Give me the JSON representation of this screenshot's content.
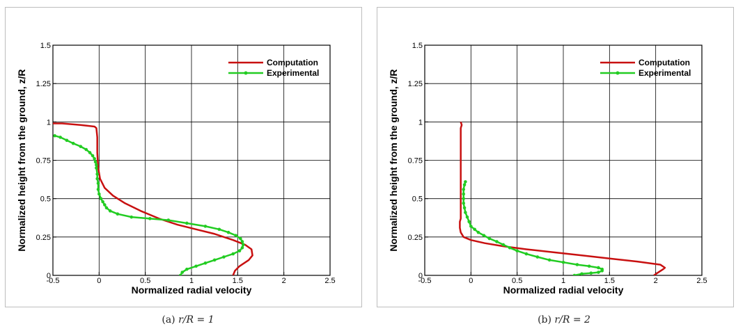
{
  "chart_data": [
    {
      "type": "line",
      "xlabel": "Normalized radial velocity",
      "ylabel": "Normalized height from the ground, z/R",
      "xlim": [
        -0.5,
        2.5
      ],
      "ylim": [
        0,
        1.5
      ],
      "x_ticks": [
        "-0.5",
        "0",
        "0.5",
        "1",
        "1.5",
        "2",
        "2.5"
      ],
      "y_ticks": [
        "0",
        "0.25",
        "0.5",
        "0.75",
        "1",
        "1.25",
        "1.5"
      ],
      "grid": true,
      "legend_position": "top-right",
      "caption": {
        "label": "(a)",
        "math": "r/R = 1"
      },
      "series": [
        {
          "name": "Computation",
          "color": "#c81010",
          "marker": "none",
          "points": [
            [
              1.45,
              0.0
            ],
            [
              1.47,
              0.03
            ],
            [
              1.52,
              0.06
            ],
            [
              1.62,
              0.1
            ],
            [
              1.66,
              0.13
            ],
            [
              1.65,
              0.17
            ],
            [
              1.58,
              0.2
            ],
            [
              1.45,
              0.23
            ],
            [
              1.25,
              0.27
            ],
            [
              1.05,
              0.3
            ],
            [
              0.85,
              0.33
            ],
            [
              0.65,
              0.37
            ],
            [
              0.45,
              0.42
            ],
            [
              0.28,
              0.47
            ],
            [
              0.15,
              0.52
            ],
            [
              0.06,
              0.57
            ],
            [
              0.01,
              0.63
            ],
            [
              -0.01,
              0.7
            ],
            [
              -0.02,
              0.8
            ],
            [
              -0.02,
              0.9
            ],
            [
              -0.03,
              0.96
            ],
            [
              -0.05,
              0.97
            ],
            [
              -0.2,
              0.98
            ],
            [
              -0.4,
              0.99
            ],
            [
              -0.5,
              0.99
            ]
          ]
        },
        {
          "name": "Experimental",
          "color": "#22cc22",
          "marker": "circle",
          "points": [
            [
              0.88,
              0.0
            ],
            [
              0.9,
              0.02
            ],
            [
              0.95,
              0.04
            ],
            [
              1.05,
              0.06
            ],
            [
              1.15,
              0.08
            ],
            [
              1.25,
              0.1
            ],
            [
              1.35,
              0.12
            ],
            [
              1.45,
              0.14
            ],
            [
              1.52,
              0.16
            ],
            [
              1.55,
              0.18
            ],
            [
              1.56,
              0.2
            ],
            [
              1.55,
              0.22
            ],
            [
              1.53,
              0.24
            ],
            [
              1.48,
              0.26
            ],
            [
              1.4,
              0.28
            ],
            [
              1.3,
              0.3
            ],
            [
              1.15,
              0.32
            ],
            [
              0.95,
              0.34
            ],
            [
              0.75,
              0.36
            ],
            [
              0.55,
              0.37
            ],
            [
              0.35,
              0.38
            ],
            [
              0.2,
              0.4
            ],
            [
              0.12,
              0.42
            ],
            [
              0.08,
              0.44
            ],
            [
              0.06,
              0.46
            ],
            [
              0.04,
              0.48
            ],
            [
              0.02,
              0.5
            ],
            [
              0.0,
              0.53
            ],
            [
              -0.01,
              0.56
            ],
            [
              -0.01,
              0.6
            ],
            [
              -0.02,
              0.63
            ],
            [
              -0.02,
              0.66
            ],
            [
              -0.03,
              0.7
            ],
            [
              -0.03,
              0.72
            ],
            [
              -0.04,
              0.74
            ],
            [
              -0.05,
              0.76
            ],
            [
              -0.07,
              0.78
            ],
            [
              -0.1,
              0.8
            ],
            [
              -0.14,
              0.82
            ],
            [
              -0.2,
              0.84
            ],
            [
              -0.28,
              0.86
            ],
            [
              -0.35,
              0.88
            ],
            [
              -0.42,
              0.9
            ],
            [
              -0.48,
              0.91
            ]
          ]
        }
      ]
    },
    {
      "type": "line",
      "xlabel": "Normalized radial velocity",
      "ylabel": "Normalized height from the ground, z/R",
      "xlim": [
        -0.5,
        2.5
      ],
      "ylim": [
        0,
        1.5
      ],
      "x_ticks": [
        "-0.5",
        "0",
        "0.5",
        "1",
        "1.5",
        "2",
        "2.5"
      ],
      "y_ticks": [
        "0",
        "0.25",
        "0.5",
        "0.75",
        "1",
        "1.25",
        "1.5"
      ],
      "grid": true,
      "legend_position": "top-right",
      "caption": {
        "label": "(b)",
        "math": "r/R = 2"
      },
      "series": [
        {
          "name": "Computation",
          "color": "#c81010",
          "marker": "none",
          "points": [
            [
              1.98,
              0.0
            ],
            [
              2.03,
              0.02
            ],
            [
              2.08,
              0.04
            ],
            [
              2.1,
              0.05
            ],
            [
              2.05,
              0.07
            ],
            [
              1.8,
              0.09
            ],
            [
              1.5,
              0.11
            ],
            [
              1.2,
              0.13
            ],
            [
              0.9,
              0.15
            ],
            [
              0.6,
              0.17
            ],
            [
              0.35,
              0.19
            ],
            [
              0.15,
              0.21
            ],
            [
              0.0,
              0.23
            ],
            [
              -0.08,
              0.25
            ],
            [
              -0.11,
              0.28
            ],
            [
              -0.12,
              0.31
            ],
            [
              -0.12,
              0.35
            ],
            [
              -0.11,
              0.37
            ],
            [
              -0.11,
              0.5
            ],
            [
              -0.11,
              0.7
            ],
            [
              -0.11,
              0.9
            ],
            [
              -0.11,
              0.96
            ],
            [
              -0.1,
              0.98
            ],
            [
              -0.11,
              1.0
            ]
          ]
        },
        {
          "name": "Experimental",
          "color": "#22cc22",
          "marker": "circle",
          "points": [
            [
              1.12,
              0.0
            ],
            [
              1.2,
              0.01
            ],
            [
              1.3,
              0.015
            ],
            [
              1.38,
              0.02
            ],
            [
              1.42,
              0.03
            ],
            [
              1.42,
              0.04
            ],
            [
              1.38,
              0.05
            ],
            [
              1.28,
              0.06
            ],
            [
              1.15,
              0.07
            ],
            [
              1.0,
              0.085
            ],
            [
              0.85,
              0.1
            ],
            [
              0.72,
              0.12
            ],
            [
              0.6,
              0.14
            ],
            [
              0.5,
              0.16
            ],
            [
              0.42,
              0.18
            ],
            [
              0.35,
              0.2
            ],
            [
              0.28,
              0.22
            ],
            [
              0.2,
              0.24
            ],
            [
              0.14,
              0.26
            ],
            [
              0.08,
              0.28
            ],
            [
              0.04,
              0.3
            ],
            [
              0.0,
              0.32
            ],
            [
              -0.02,
              0.35
            ],
            [
              -0.04,
              0.38
            ],
            [
              -0.06,
              0.41
            ],
            [
              -0.07,
              0.44
            ],
            [
              -0.08,
              0.47
            ],
            [
              -0.08,
              0.5
            ],
            [
              -0.08,
              0.53
            ],
            [
              -0.08,
              0.56
            ],
            [
              -0.07,
              0.59
            ],
            [
              -0.06,
              0.61
            ]
          ]
        }
      ]
    }
  ]
}
